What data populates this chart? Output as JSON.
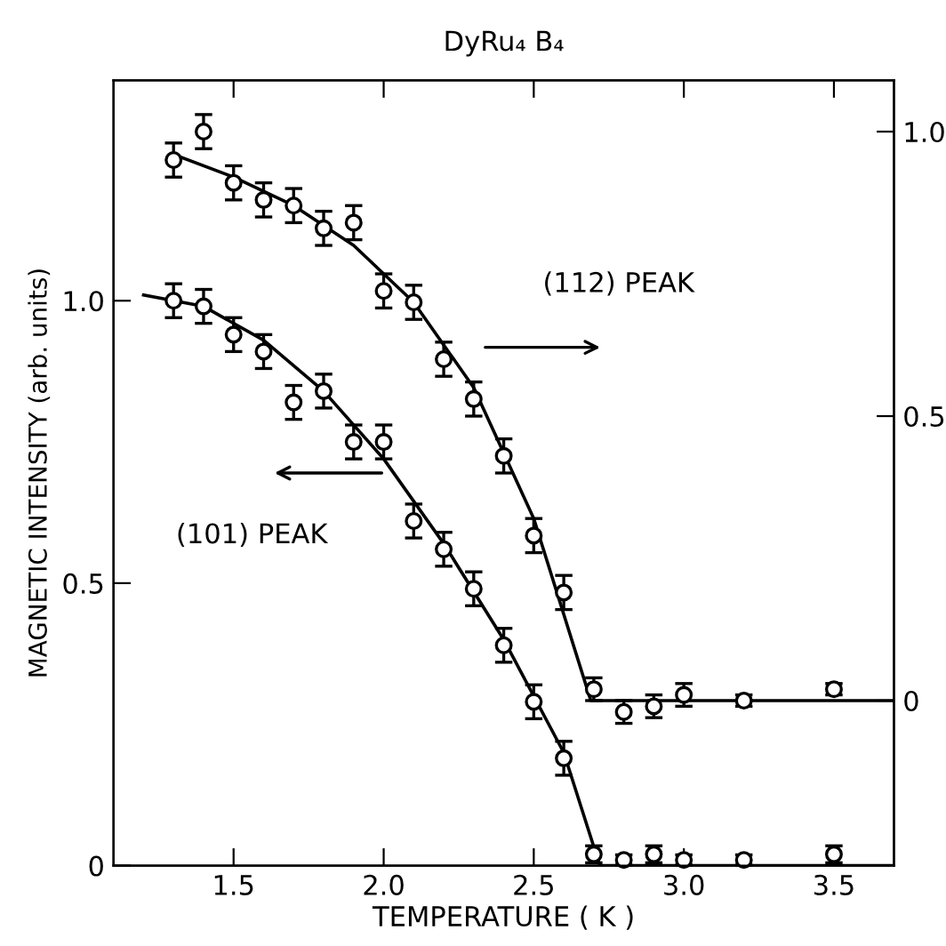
{
  "chart_data": {
    "type": "scatter",
    "title": "DyRu₄ B₄",
    "xlabel": "TEMPERATURE ( K )",
    "ylabel": "MAGNETIC INTENSITY (arb. units)",
    "annotations": [
      "(112) PEAK",
      "(101) PEAK"
    ],
    "xlim": [
      1.1,
      3.7
    ],
    "xticks": [
      1.5,
      {
        "value": 2.0,
        "label": "2.0"
      },
      2.5,
      {
        "value": 3.0,
        "label": "3.0"
      },
      3.5
    ],
    "ylim": [
      0,
      1.39
    ],
    "yticks": [
      {
        "value": 0,
        "label": "0"
      },
      {
        "value": 0.5,
        "label": "0.5"
      },
      {
        "value": 1.0,
        "label": "1.0"
      }
    ],
    "y2lim": [
      -0.29,
      1.09
    ],
    "y2ticks": [
      {
        "value": 0,
        "label": "0"
      },
      {
        "value": 0.5,
        "label": "0.5"
      },
      {
        "value": 1.0,
        "label": "1.0"
      }
    ],
    "marker": "circle",
    "grid": false,
    "legend": false,
    "series": [
      {
        "color": "#000000",
        "x": [
          1.3,
          1.4,
          1.5,
          1.6,
          1.7,
          1.8,
          1.9,
          2.0,
          2.1,
          2.2,
          2.3,
          2.4,
          2.5,
          2.6,
          2.7,
          2.8,
          2.9,
          3.0,
          3.2,
          3.5
        ],
        "values": [
          1.0,
          0.99,
          0.94,
          0.91,
          0.82,
          0.84,
          0.75,
          0.75,
          0.61,
          0.56,
          0.49,
          0.39,
          0.29,
          0.19,
          0.02,
          0.01,
          0.02,
          0.01,
          0.01,
          0.02
        ],
        "errors": [
          0.03,
          0.03,
          0.03,
          0.03,
          0.03,
          0.03,
          0.03,
          0.03,
          0.03,
          0.03,
          0.03,
          0.03,
          0.03,
          0.03,
          0.015,
          0.009,
          0.015,
          0.009,
          0.009,
          0.015
        ]
      },
      {
        "color": "#000000",
        "axis": "y2",
        "x": [
          1.3,
          1.4,
          1.5,
          1.6,
          1.7,
          1.8,
          1.9,
          2.0,
          2.1,
          2.2,
          2.3,
          2.4,
          2.5,
          2.6,
          2.7,
          2.8,
          2.9,
          3.0,
          3.2,
          3.5
        ],
        "values": [
          0.95,
          1.0,
          0.91,
          0.88,
          0.87,
          0.83,
          0.84,
          0.72,
          0.7,
          0.6,
          0.53,
          0.43,
          0.29,
          0.19,
          0.02,
          -0.02,
          -0.01,
          0.01,
          0.0,
          0.02
        ],
        "errors": [
          0.03,
          0.03,
          0.03,
          0.03,
          0.03,
          0.03,
          0.03,
          0.03,
          0.03,
          0.03,
          0.03,
          0.03,
          0.03,
          0.03,
          0.02,
          0.02,
          0.02,
          0.02,
          0.01,
          0.01
        ]
      },
      {
        "type": "line",
        "marker": "none",
        "color": "#000000",
        "x": [
          1.2,
          1.4,
          1.6,
          1.8,
          2.0,
          2.2,
          2.4,
          2.6,
          2.72,
          3.7
        ],
        "values": [
          1.01,
          0.99,
          0.93,
          0.84,
          0.72,
          0.57,
          0.4,
          0.2,
          0.0,
          0.0
        ]
      },
      {
        "type": "line",
        "marker": "none",
        "color": "#000000",
        "axis": "y2",
        "x": [
          1.3,
          1.5,
          1.7,
          1.9,
          2.1,
          2.3,
          2.5,
          2.69,
          3.7
        ],
        "values": [
          0.96,
          0.92,
          0.87,
          0.8,
          0.7,
          0.55,
          0.32,
          0.0,
          0.0
        ]
      }
    ]
  }
}
